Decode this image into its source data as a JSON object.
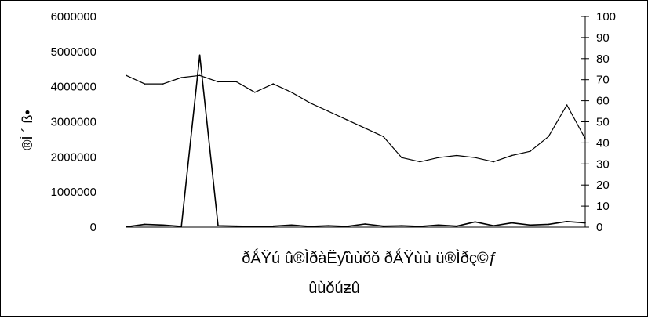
{
  "chart_data": {
    "type": "line",
    "title": "",
    "ylabel": "®Ì ´ ß•",
    "y2label": "",
    "xlabel_lines": [
      "ðǺŸú   û®ÌðàËƴùùǒǒ   ðǺŸùù   ü®Ìðç©ƒ",
      "ûùǒúƶû"
    ],
    "ylim": [
      0,
      6000000
    ],
    "y2lim": [
      0,
      100
    ],
    "y_ticks": [
      "6000000",
      "5000000",
      "4000000",
      "3000000",
      "2000000",
      "1000000",
      "0"
    ],
    "y2_ticks": [
      "100",
      "90",
      "80",
      "70",
      "60",
      "50",
      "40",
      "30",
      "20",
      "10",
      "0"
    ],
    "grid": false,
    "legend": "none",
    "x": [
      0,
      4,
      8,
      12,
      16,
      20,
      24,
      28,
      32,
      36,
      40,
      44,
      48,
      52,
      56,
      60,
      64,
      68,
      72,
      76,
      80,
      84,
      88,
      92,
      96,
      100
    ],
    "series": [
      {
        "axis": "right",
        "color": "#000000",
        "values": [
          72,
          68,
          68,
          71,
          72,
          69,
          69,
          64,
          68,
          64,
          59,
          55,
          51,
          47,
          43,
          33,
          31,
          33,
          34,
          33,
          31,
          34,
          36,
          43,
          58,
          42
        ]
      },
      {
        "axis": "left",
        "color": "#000000",
        "values": [
          10000,
          80000,
          60000,
          20000,
          4900000,
          40000,
          30000,
          20000,
          30000,
          60000,
          20000,
          40000,
          20000,
          90000,
          30000,
          40000,
          20000,
          60000,
          30000,
          150000,
          40000,
          120000,
          60000,
          80000,
          160000,
          120000
        ]
      }
    ]
  }
}
